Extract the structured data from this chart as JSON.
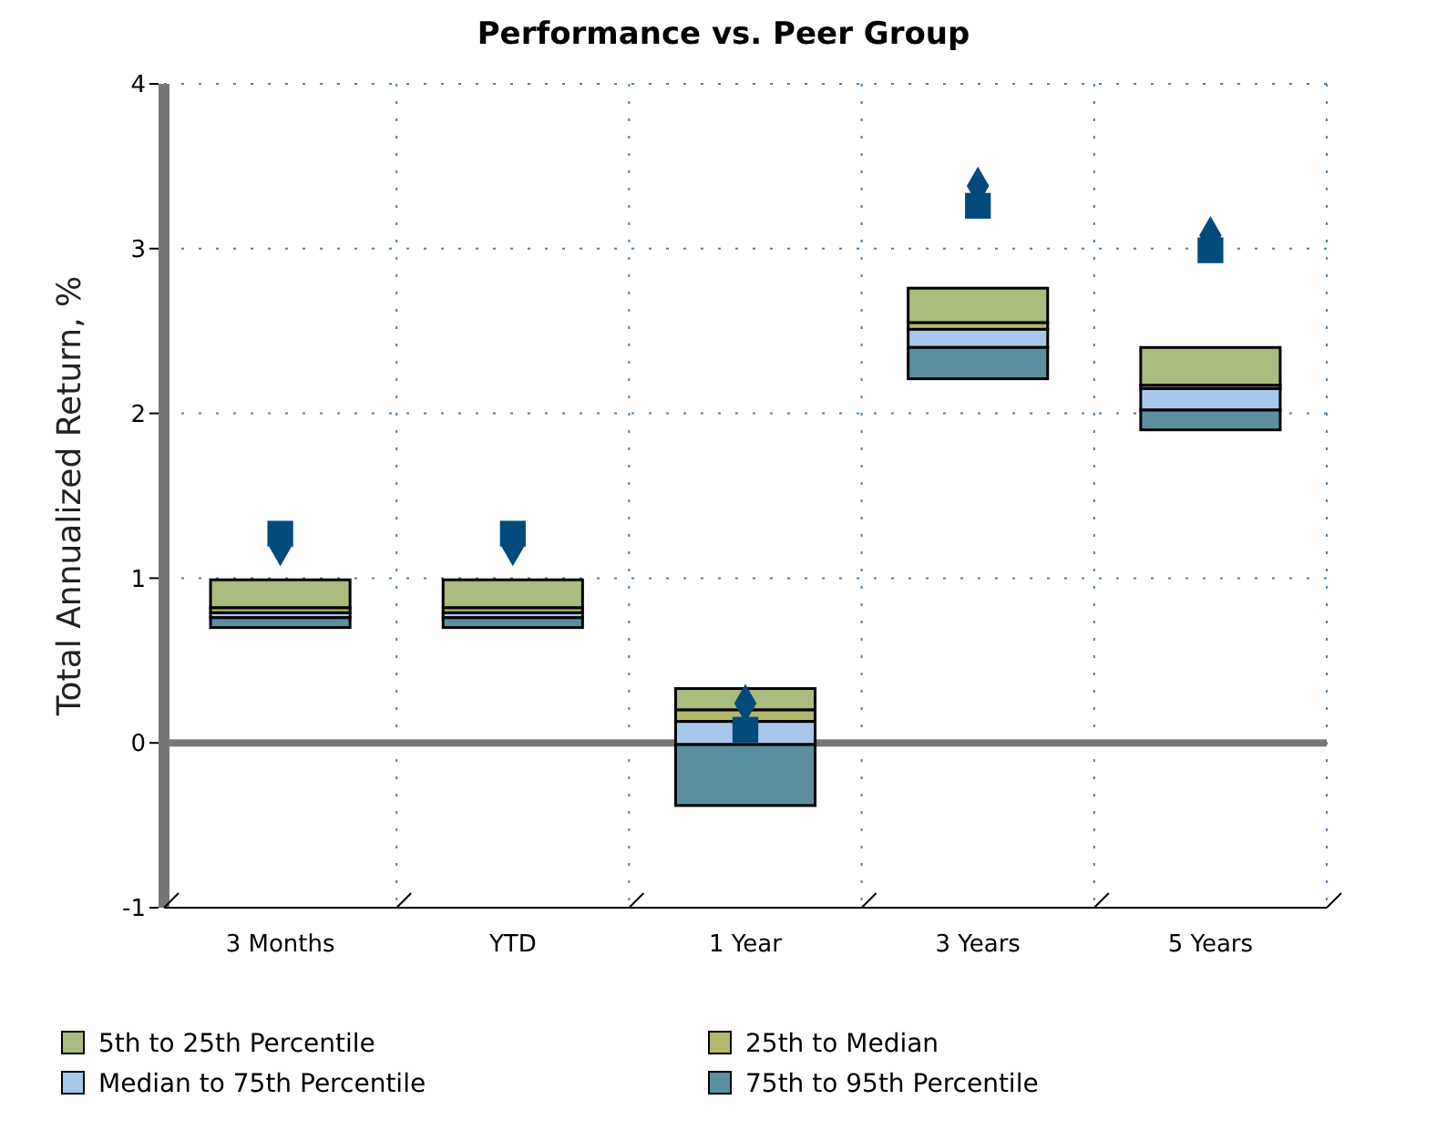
{
  "chart_data": {
    "type": "bar",
    "title": "Performance vs. Peer Group",
    "ylabel": "Total Annualized Return, %",
    "categories": [
      "3 Months",
      "YTD",
      "1 Year",
      "3 Years",
      "5 Years"
    ],
    "series": [
      {
        "name": "5th to 25th Percentile",
        "color": "#aabb7e",
        "base": [
          0.82,
          0.82,
          0.2,
          2.55,
          2.17
        ],
        "values": [
          0.17,
          0.17,
          0.13,
          0.21,
          0.23
        ]
      },
      {
        "name": "25th to Median",
        "color": "#b3b86c",
        "base": [
          0.79,
          0.79,
          0.13,
          2.51,
          2.15
        ],
        "values": [
          0.03,
          0.03,
          0.07,
          0.04,
          0.02
        ]
      },
      {
        "name": "Median to 75th Percentile",
        "color": "#a6c8ec",
        "base": [
          0.76,
          0.76,
          -0.01,
          2.4,
          2.02
        ],
        "values": [
          0.03,
          0.03,
          0.14,
          0.11,
          0.13
        ]
      },
      {
        "name": "75th to 95th Percentile",
        "color": "#5b8fa0",
        "base": [
          0.7,
          0.7,
          -0.38,
          2.21,
          1.9
        ],
        "values": [
          0.06,
          0.06,
          0.37,
          0.19,
          0.12
        ]
      },
      {
        "type": "scatter",
        "marker": "square",
        "color": "#004a7c",
        "values": [
          1.27,
          1.27,
          0.08,
          3.26,
          2.99
        ]
      },
      {
        "type": "scatter",
        "marker": "diamond",
        "color": "#004a7c",
        "values": [
          1.19,
          1.19,
          0.24,
          3.38,
          3.08
        ]
      }
    ],
    "ylim": [
      -1,
      4
    ],
    "yticks": [
      -1,
      0,
      1,
      2,
      3,
      4
    ],
    "grid": true,
    "legend": "bottom"
  }
}
